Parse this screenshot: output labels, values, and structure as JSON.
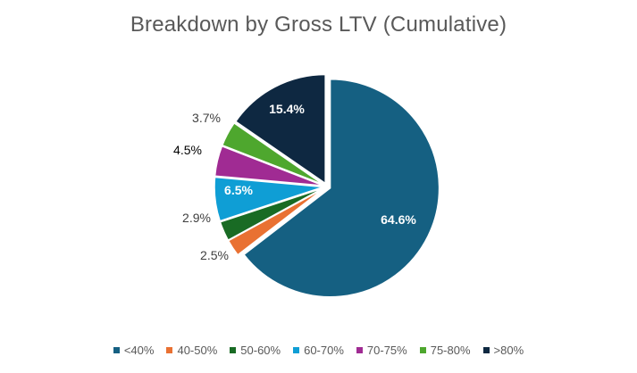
{
  "chart_data": {
    "type": "pie",
    "title": "Breakdown by Gross LTV (Cumulative)",
    "categories": [
      "<40%",
      "40-50%",
      "50-60%",
      "60-70%",
      "70-75%",
      "75-80%",
      ">80%"
    ],
    "values": [
      64.6,
      2.5,
      2.9,
      6.5,
      4.5,
      3.7,
      15.4
    ],
    "labels": [
      "64.6%",
      "2.5%",
      "2.9%",
      "6.5%",
      "4.5%",
      "3.7%",
      "15.4%"
    ],
    "colors": [
      "#156082",
      "#E97132",
      "#196B24",
      "#0F9ED5",
      "#A02B93",
      "#4EA72E",
      "#0E2841"
    ],
    "label_colors": [
      "#ffffff",
      "#404040",
      "#404040",
      "#ffffff",
      "#000000",
      "#404040",
      "#ffffff"
    ],
    "legend_position": "bottom",
    "start_angle_deg": 0,
    "direction": "clockwise"
  }
}
